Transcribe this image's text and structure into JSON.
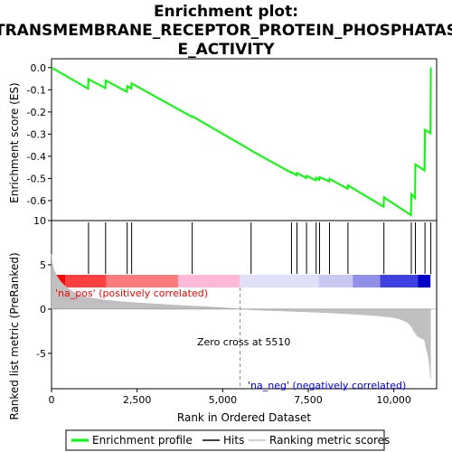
{
  "chart_data": [
    {
      "type": "line",
      "title_line1": "Enrichment plot:",
      "title_line2": "TRANSMEMBRANE_RECEPTOR_PROTEIN_PHOSPHATAS",
      "title_line3": "E_ACTIVITY",
      "ylabel": "Enrichment score (ES)",
      "ylim": [
        -0.69,
        0.04
      ],
      "yticks": [
        0.0,
        -0.1,
        -0.2,
        -0.3,
        -0.4,
        -0.5,
        -0.6
      ],
      "ytick_labels": [
        "0.0",
        "-0.1",
        "-0.2",
        "-0.3",
        "-0.4",
        "-0.5",
        "-0.6"
      ],
      "xlim": [
        0,
        11250
      ],
      "series": [
        {
          "name": "Enrichment profile",
          "color": "#00ff00",
          "x": [
            0,
            1070,
            1080,
            1570,
            1580,
            2200,
            2210,
            2330,
            2340,
            4100,
            4110,
            5820,
            5830,
            7000,
            7010,
            7160,
            7170,
            7440,
            7450,
            7720,
            7730,
            7820,
            7830,
            8110,
            8120,
            8650,
            8660,
            9700,
            9710,
            10500,
            10510,
            10620,
            10630,
            10900,
            10910,
            11070,
            11080
          ],
          "y": [
            0.0,
            -0.095,
            -0.052,
            -0.092,
            -0.058,
            -0.109,
            -0.083,
            -0.094,
            -0.071,
            -0.222,
            -0.219,
            -0.372,
            -0.374,
            -0.474,
            -0.472,
            -0.486,
            -0.475,
            -0.498,
            -0.488,
            -0.508,
            -0.497,
            -0.506,
            -0.494,
            -0.513,
            -0.502,
            -0.546,
            -0.531,
            -0.627,
            -0.585,
            -0.665,
            -0.571,
            -0.588,
            -0.437,
            -0.464,
            -0.281,
            -0.296,
            0.0
          ]
        }
      ]
    },
    {
      "type": "scatter",
      "name": "hits",
      "hits": [
        1080,
        1580,
        2210,
        2340,
        4110,
        5830,
        7010,
        7170,
        7450,
        7730,
        7830,
        8120,
        8660,
        9710,
        10510,
        10630,
        10910,
        11080
      ]
    },
    {
      "type": "heatmap",
      "name": "rank-color-bar",
      "colors": [
        "#ff0000",
        "#ff4040",
        "#ff7a7a",
        "#ffb8d8",
        "#e0e0f8",
        "#c8c8f0",
        "#9090e8",
        "#4040e0",
        "#0000c8"
      ],
      "stops": [
        0,
        400,
        1600,
        3700,
        5500,
        7800,
        8800,
        9600,
        10700,
        11070
      ]
    },
    {
      "type": "area",
      "xlabel": "Rank in Ordered Dataset",
      "ylabel": "Ranked list metric (PreRanked)",
      "ylim": [
        -9,
        10
      ],
      "yticks": [
        10,
        5,
        0,
        -5
      ],
      "ytick_labels": [
        "10",
        "5",
        "0",
        "-5"
      ],
      "xticks": [
        0,
        2500,
        5000,
        7500,
        10000
      ],
      "xtick_labels": [
        "0",
        "2,500",
        "5,000",
        "7,500",
        "10,000"
      ],
      "x": [
        0,
        30,
        80,
        150,
        250,
        400,
        600,
        800,
        1000,
        1300,
        1600,
        2000,
        2500,
        3000,
        3500,
        4000,
        4500,
        5000,
        5510,
        6000,
        7000,
        8000,
        9000,
        9500,
        10000,
        10200,
        10400,
        10500,
        10600,
        10700,
        10800,
        10900,
        10950,
        11000,
        11050,
        11070
      ],
      "y": [
        6.2,
        5.0,
        4.3,
        3.8,
        3.2,
        2.6,
        2.0,
        1.6,
        1.35,
        1.15,
        1.0,
        0.85,
        0.7,
        0.58,
        0.46,
        0.36,
        0.26,
        0.15,
        0.0,
        -0.1,
        -0.25,
        -0.4,
        -0.6,
        -0.75,
        -0.95,
        -1.15,
        -1.5,
        -1.9,
        -2.6,
        -3.1,
        -3.3,
        -3.5,
        -4.5,
        -5.2,
        -6.5,
        -7.8
      ],
      "zero_cross_label": "Zero cross at 5510",
      "pos_label": "'na_pos' (positively correlated)",
      "neg_label": "'na_neg' (negatively correlated)",
      "pos_color": "#ff0000",
      "neg_color": "#0000ff"
    }
  ],
  "legend": {
    "items": [
      {
        "label": "Enrichment profile",
        "color": "#00ff00"
      },
      {
        "label": "Hits",
        "color": "#000000"
      },
      {
        "label": "Ranking metric scores",
        "color": "#c0c0c0"
      }
    ]
  }
}
